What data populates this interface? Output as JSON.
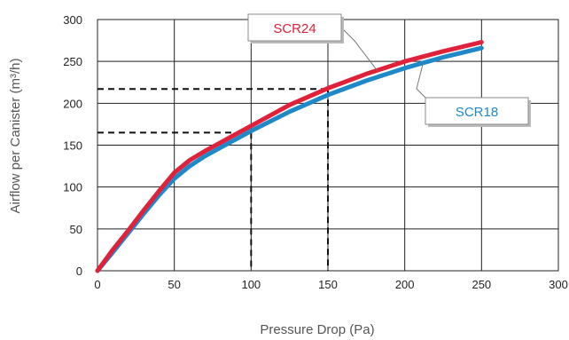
{
  "chart_data": {
    "type": "line",
    "xlabel": "Pressure Drop (Pa)",
    "ylabel": "Airflow per Canister (m³/h)",
    "xlim": [
      0,
      300
    ],
    "ylim": [
      0,
      300
    ],
    "x_ticks": [
      0,
      50,
      100,
      150,
      200,
      250,
      300
    ],
    "y_ticks": [
      0,
      50,
      100,
      150,
      200,
      250,
      300
    ],
    "grid": true,
    "series": [
      {
        "name": "SCR24",
        "color": "#e0213a",
        "x": [
          0,
          10,
          20,
          30,
          40,
          50,
          60,
          70,
          80,
          90,
          100,
          125,
          150,
          175,
          200,
          225,
          250
        ],
        "y": [
          0,
          25,
          48,
          72,
          95,
          117,
          132,
          143,
          153,
          163,
          173,
          198,
          218,
          235,
          250,
          262,
          273
        ]
      },
      {
        "name": "SCR18",
        "color": "#1e88c8",
        "x": [
          0,
          10,
          20,
          30,
          40,
          50,
          60,
          70,
          80,
          90,
          100,
          125,
          150,
          175,
          200,
          225,
          250
        ],
        "y": [
          0,
          22,
          45,
          68,
          90,
          110,
          125,
          137,
          147,
          157,
          167,
          190,
          210,
          227,
          242,
          255,
          266
        ]
      }
    ],
    "reference_lines": [
      {
        "x": 100,
        "y": 165
      },
      {
        "x": 150,
        "y": 217
      }
    ],
    "callouts": [
      {
        "label": "SCR24",
        "color": "#e0213a",
        "series": "SCR24",
        "target_x": 182
      },
      {
        "label": "SCR18",
        "color": "#1e88c8",
        "series": "SCR18",
        "target_x": 212
      }
    ]
  }
}
